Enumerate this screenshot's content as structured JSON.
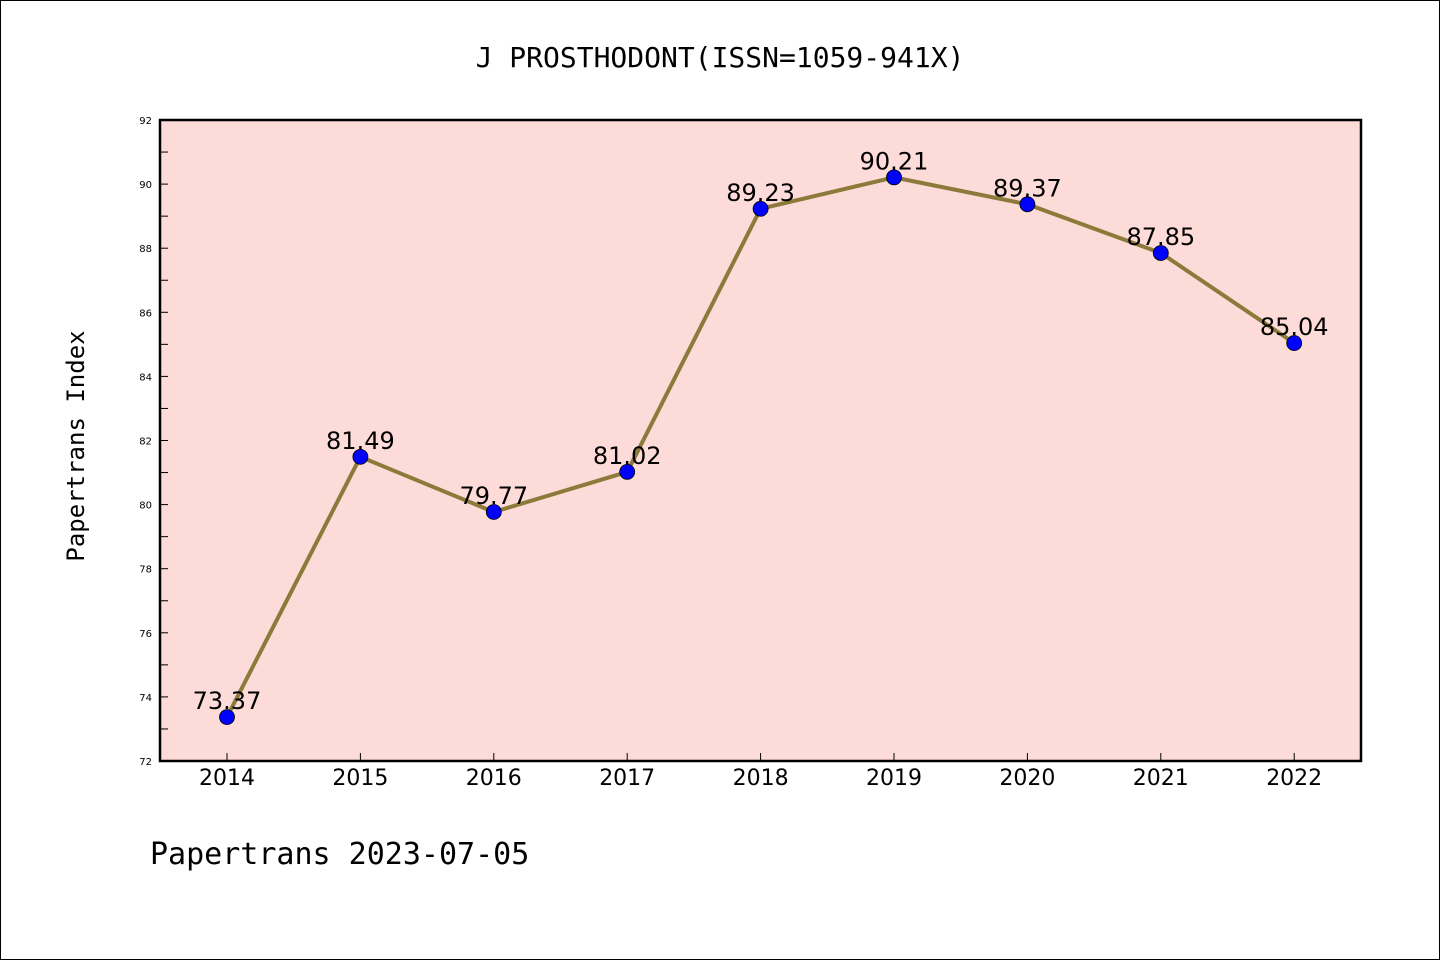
{
  "colors": {
    "plot_background": "#fddbd8",
    "line": "#8b7a3a",
    "marker": "#0000ff",
    "axes": "#000000"
  },
  "chart_data": {
    "type": "line",
    "title": "J PROSTHODONT(ISSN=1059-941X)",
    "xlabel": "",
    "ylabel": "Papertrans Index",
    "footer": "Papertrans 2023-07-05",
    "categories": [
      "2014",
      "2015",
      "2016",
      "2017",
      "2018",
      "2019",
      "2020",
      "2021",
      "2022"
    ],
    "series": [
      {
        "values": [
          73.37,
          81.49,
          79.77,
          81.02,
          89.23,
          90.21,
          89.37,
          87.85,
          85.04
        ],
        "data_labels": [
          "73.37",
          "81.49",
          "79.77",
          "81.02",
          "89.23",
          "90.21",
          "89.37",
          "87.85",
          "85.04"
        ]
      }
    ],
    "ylim": [
      72,
      92
    ],
    "yticks": [
      "72",
      "74",
      "76",
      "78",
      "80",
      "82",
      "84",
      "86",
      "88",
      "90",
      "92"
    ],
    "y_minor_step": 1,
    "grid": false,
    "legend": "none"
  }
}
